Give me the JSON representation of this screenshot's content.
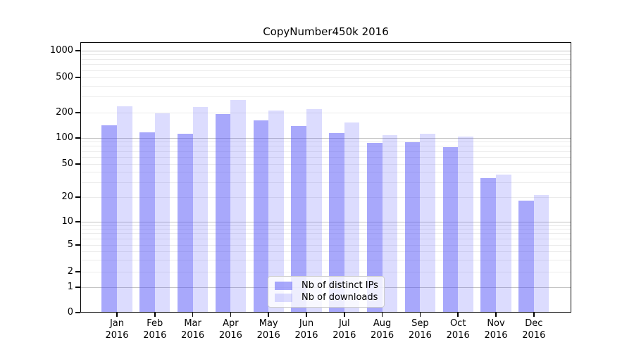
{
  "figure": {
    "background": "#ffffff"
  },
  "chart_data": {
    "type": "bar",
    "title": "CopyNumber450k 2016",
    "xlabel": "",
    "ylabel": "",
    "grid": true,
    "legend_position": "bottom-center-inside",
    "y_axis": {
      "scale": "symlog",
      "ticks": [
        0,
        1,
        2,
        5,
        10,
        20,
        50,
        100,
        200,
        500,
        1000
      ]
    },
    "categories": [
      {
        "month": "Jan",
        "year": "2016"
      },
      {
        "month": "Feb",
        "year": "2016"
      },
      {
        "month": "Mar",
        "year": "2016"
      },
      {
        "month": "Apr",
        "year": "2016"
      },
      {
        "month": "May",
        "year": "2016"
      },
      {
        "month": "Jun",
        "year": "2016"
      },
      {
        "month": "Jul",
        "year": "2016"
      },
      {
        "month": "Aug",
        "year": "2016"
      },
      {
        "month": "Sep",
        "year": "2016"
      },
      {
        "month": "Oct",
        "year": "2016"
      },
      {
        "month": "Nov",
        "year": "2016"
      },
      {
        "month": "Dec",
        "year": "2016"
      }
    ],
    "series": [
      {
        "key": "distinct-ips",
        "name": "Nb of distinct IPs",
        "color": "rgba(82, 82, 248, 0.5)",
        "values": [
          141,
          117,
          112,
          192,
          161,
          139,
          114,
          88,
          90,
          78,
          34,
          18
        ]
      },
      {
        "key": "downloads",
        "name": "Nb of downloads",
        "color": "rgba(82, 82, 248, 0.2)",
        "values": [
          236,
          196,
          232,
          277,
          210,
          218,
          153,
          108,
          112,
          104,
          37,
          21
        ]
      }
    ]
  }
}
